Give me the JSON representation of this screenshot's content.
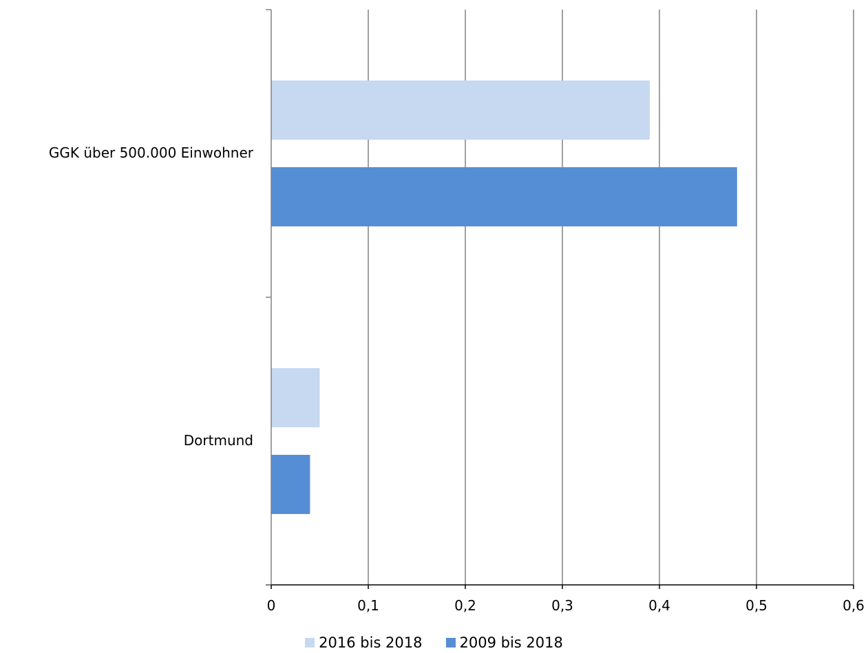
{
  "chart_data": {
    "type": "bar",
    "orientation": "horizontal",
    "categories": [
      "GGK über 500.000 Einwohner",
      "Dortmund"
    ],
    "series": [
      {
        "name": "2016 bis 2018",
        "color": "#c6d9f1",
        "values": [
          0.39,
          0.05
        ]
      },
      {
        "name": "2009 bis 2018",
        "color": "#558ed5",
        "values": [
          0.48,
          0.04
        ]
      }
    ],
    "x_ticks": [
      "0",
      "0,1",
      "0,2",
      "0,3",
      "0,4",
      "0,5",
      "0,6"
    ],
    "xlim": [
      0,
      0.6
    ],
    "grid": "vertical",
    "legend_position": "bottom"
  }
}
